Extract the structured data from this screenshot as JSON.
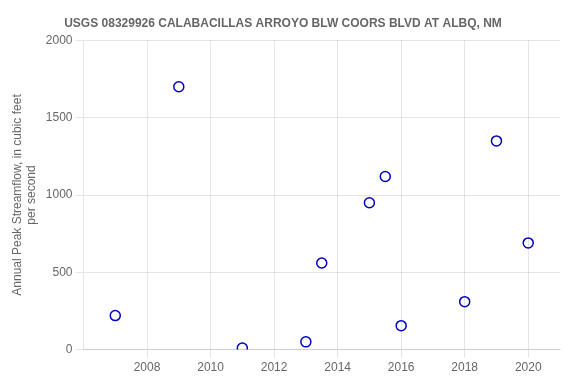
{
  "chart_data": {
    "type": "scatter",
    "title": "USGS 08329926 CALABACILLAS ARROYO BLW COORS BLVD AT ALBQ, NM",
    "y_label": "Annual Peak Streamflow, in cubic feet\nper second",
    "x": [
      2007,
      2009,
      2011,
      2013,
      2013.5,
      2015,
      2015.5,
      2016,
      2018,
      2019,
      2020
    ],
    "values": [
      220,
      1700,
      10,
      50,
      560,
      950,
      1120,
      155,
      310,
      1350,
      690
    ],
    "color": "#0000bb",
    "marker": "circle",
    "xlim": [
      2006,
      2021
    ],
    "ylim": [
      0,
      2000
    ],
    "xticks": [
      2008,
      2010,
      2012,
      2014,
      2016,
      2018,
      2020
    ],
    "yticks": [
      0,
      500,
      1000,
      1500,
      2000
    ],
    "grid": true
  }
}
